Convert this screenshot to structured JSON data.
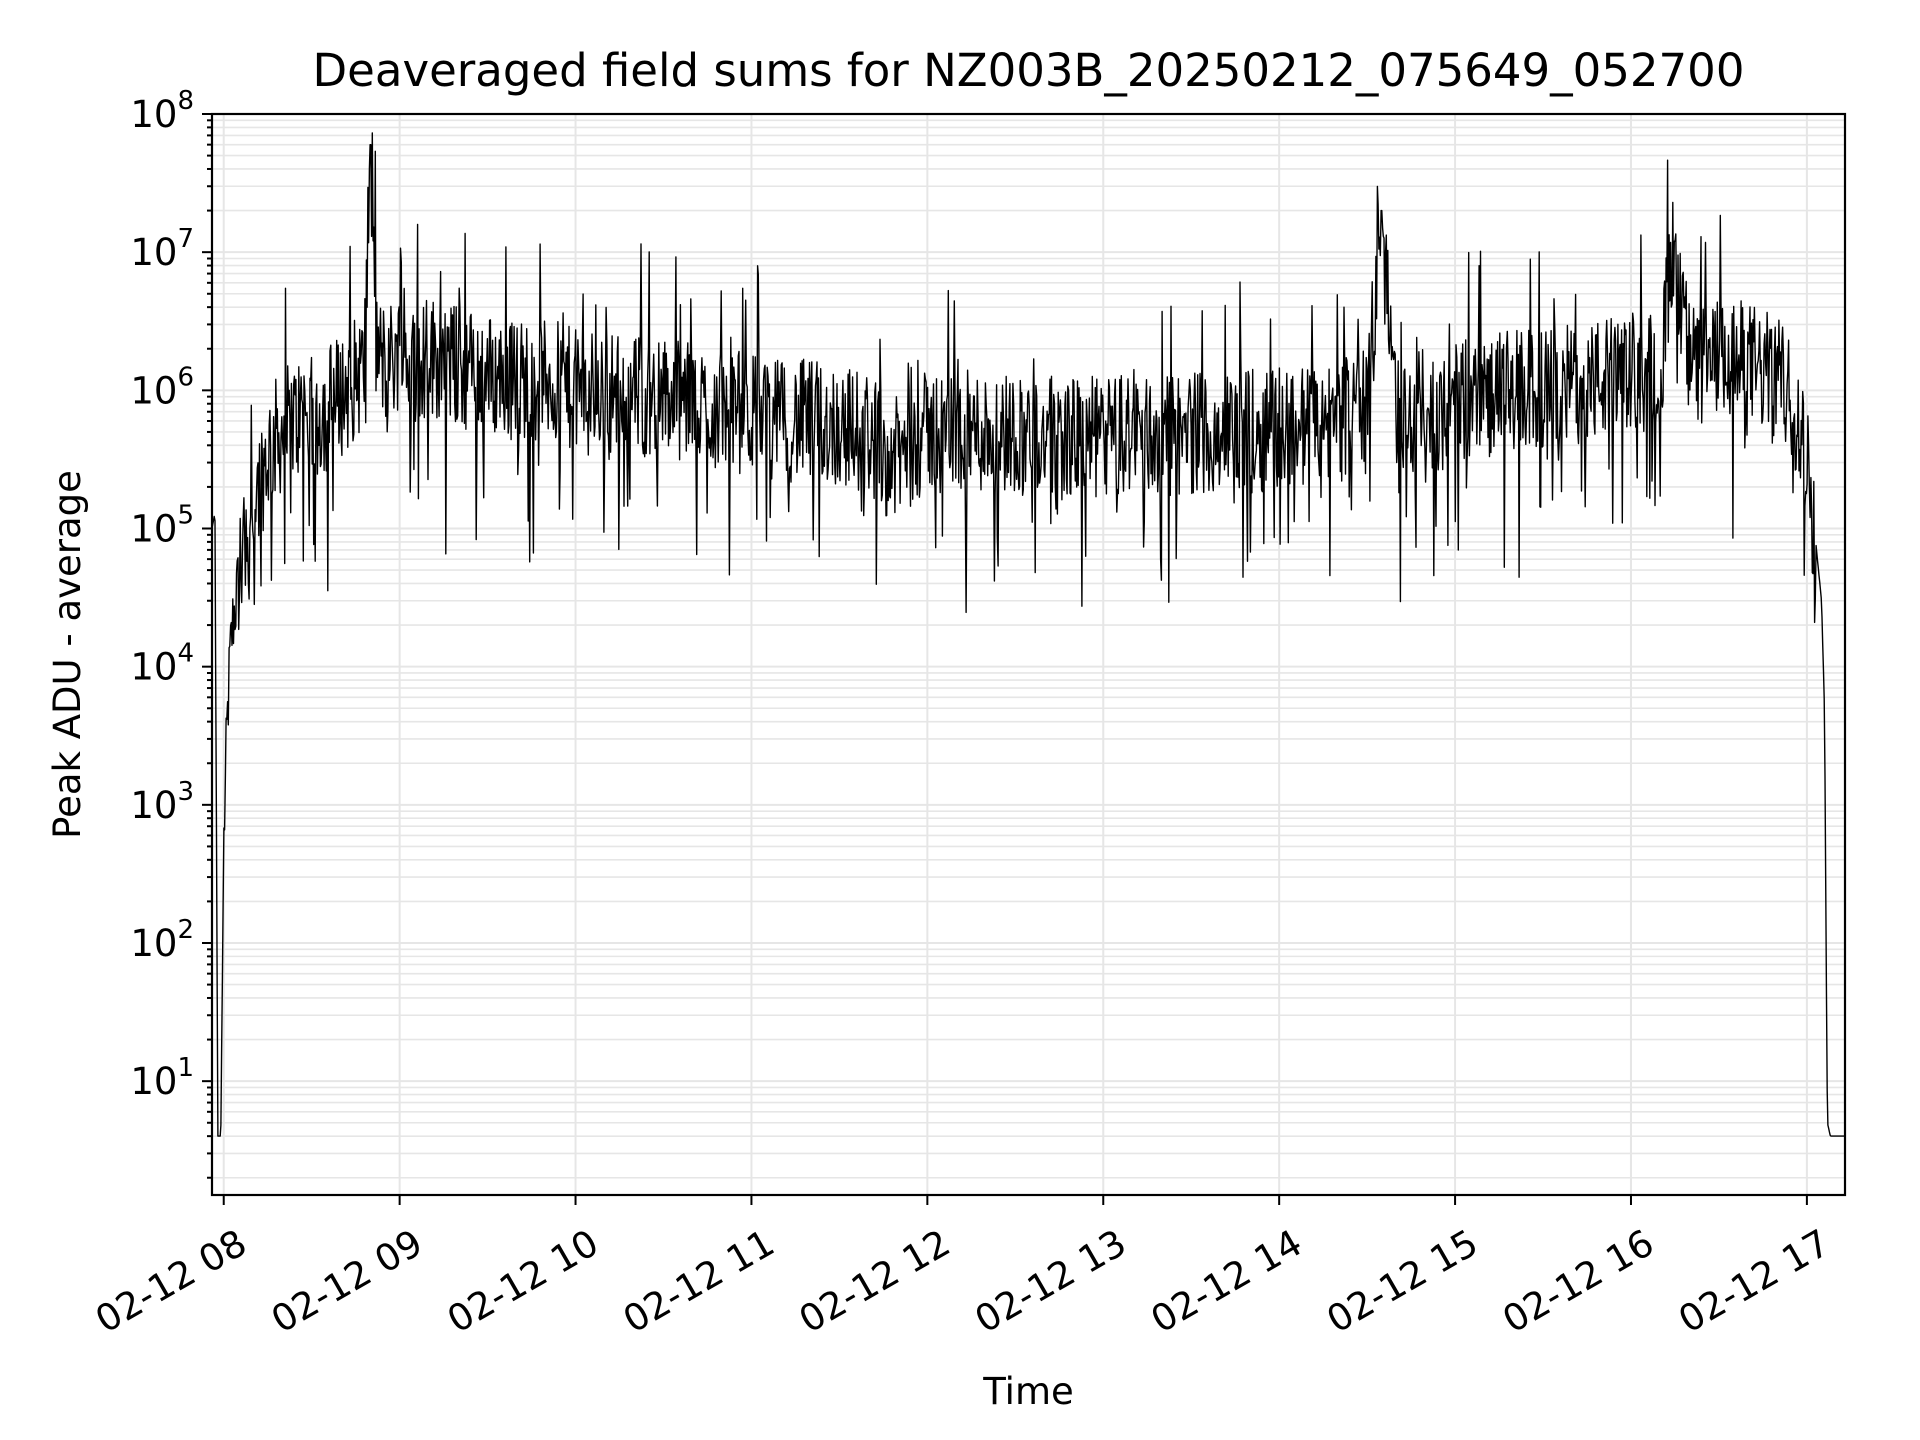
{
  "chart_data": {
    "type": "line",
    "title": "Deaveraged field sums for NZ003B_20250212_075649_052700",
    "xlabel": "Time",
    "ylabel": "Peak ADU - average",
    "yscale": "log",
    "ylim": [
      1.5,
      100000000
    ],
    "xlim": [
      "2025-02-12 07:56",
      "2025-02-12 17:13"
    ],
    "grid": true,
    "colors": {
      "line": "#000000",
      "grid": "#e6e6e6",
      "axes": "#000000"
    },
    "x_ticks": [
      {
        "value": "2025-02-12 08:00",
        "label": "02-12 08"
      },
      {
        "value": "2025-02-12 09:00",
        "label": "02-12 09"
      },
      {
        "value": "2025-02-12 10:00",
        "label": "02-12 10"
      },
      {
        "value": "2025-02-12 11:00",
        "label": "02-12 11"
      },
      {
        "value": "2025-02-12 12:00",
        "label": "02-12 12"
      },
      {
        "value": "2025-02-12 13:00",
        "label": "02-12 13"
      },
      {
        "value": "2025-02-12 14:00",
        "label": "02-12 14"
      },
      {
        "value": "2025-02-12 15:00",
        "label": "02-12 15"
      },
      {
        "value": "2025-02-12 16:00",
        "label": "02-12 16"
      },
      {
        "value": "2025-02-12 17:00",
        "label": "02-12 17"
      }
    ],
    "y_ticks": [
      {
        "value": 10,
        "base": "10",
        "exp": "1"
      },
      {
        "value": 100,
        "base": "10",
        "exp": "2"
      },
      {
        "value": 1000,
        "base": "10",
        "exp": "3"
      },
      {
        "value": 10000,
        "base": "10",
        "exp": "4"
      },
      {
        "value": 100000,
        "base": "10",
        "exp": "5"
      },
      {
        "value": 1000000,
        "base": "10",
        "exp": "6"
      },
      {
        "value": 10000000,
        "base": "10",
        "exp": "7"
      },
      {
        "value": 100000000,
        "base": "10",
        "exp": "8"
      }
    ],
    "series": [
      {
        "x": [
          "2025-02-12 07:56",
          "2025-02-12 07:57",
          "2025-02-12 07:58",
          "2025-02-12 07:59",
          "2025-02-12 08:00",
          "2025-02-12 08:01",
          "2025-02-12 08:02",
          "2025-02-12 08:03",
          "2025-02-12 08:05",
          "2025-02-12 08:07",
          "2025-02-12 08:10",
          "2025-02-12 08:13",
          "2025-02-12 08:16",
          "2025-02-12 08:20",
          "2025-02-12 08:24",
          "2025-02-12 08:28",
          "2025-02-12 08:31",
          "2025-02-12 08:36",
          "2025-02-12 08:42",
          "2025-02-12 08:48",
          "2025-02-12 08:50",
          "2025-02-12 08:52",
          "2025-02-12 08:55",
          "2025-02-12 09:00",
          "2025-02-12 09:05",
          "2025-02-12 09:10",
          "2025-02-12 09:20",
          "2025-02-12 09:30",
          "2025-02-12 09:40",
          "2025-02-12 09:50",
          "2025-02-12 10:00",
          "2025-02-12 10:10",
          "2025-02-12 10:20",
          "2025-02-12 10:30",
          "2025-02-12 10:40",
          "2025-02-12 10:50",
          "2025-02-12 11:00",
          "2025-02-12 11:10",
          "2025-02-12 11:20",
          "2025-02-12 11:30",
          "2025-02-12 11:40",
          "2025-02-12 11:48",
          "2025-02-12 12:00",
          "2025-02-12 12:10",
          "2025-02-12 12:20",
          "2025-02-12 12:30",
          "2025-02-12 12:40",
          "2025-02-12 12:50",
          "2025-02-12 13:00",
          "2025-02-12 13:10",
          "2025-02-12 13:20",
          "2025-02-12 13:30",
          "2025-02-12 13:40",
          "2025-02-12 13:50",
          "2025-02-12 14:00",
          "2025-02-12 14:10",
          "2025-02-12 14:20",
          "2025-02-12 14:30",
          "2025-02-12 14:35",
          "2025-02-12 14:40",
          "2025-02-12 14:50",
          "2025-02-12 15:00",
          "2025-02-12 15:10",
          "2025-02-12 15:20",
          "2025-02-12 15:30",
          "2025-02-12 15:40",
          "2025-02-12 15:50",
          "2025-02-12 16:00",
          "2025-02-12 16:10",
          "2025-02-12 16:15",
          "2025-02-12 16:20",
          "2025-02-12 16:30",
          "2025-02-12 16:40",
          "2025-02-12 16:50",
          "2025-02-12 16:55",
          "2025-02-12 17:00",
          "2025-02-12 17:03",
          "2025-02-12 17:05",
          "2025-02-12 17:06",
          "2025-02-12 17:07",
          "2025-02-12 17:08",
          "2025-02-12 17:13"
        ],
        "y": [
          100000,
          130000,
          4,
          4,
          500,
          3000,
          10000,
          20000,
          40000,
          80000,
          150000,
          250000,
          400000,
          500000,
          600000,
          700000,
          600000,
          800000,
          1000000,
          1500000,
          60000000,
          2000000,
          1500000,
          2000000,
          1500000,
          1800000,
          1500000,
          1300000,
          1200000,
          1200000,
          1000000,
          1000000,
          900000,
          900000,
          800000,
          700000,
          700000,
          600000,
          600000,
          550000,
          500000,
          300000,
          500000,
          500000,
          500000,
          500000,
          450000,
          450000,
          450000,
          500000,
          450000,
          500000,
          500000,
          500000,
          550000,
          550000,
          600000,
          700000,
          20000000,
          700000,
          700000,
          800000,
          900000,
          1000000,
          1000000,
          1100000,
          1200000,
          1300000,
          1500000,
          12000000,
          1500000,
          1600000,
          1600000,
          1200000,
          900000,
          300000,
          80000,
          30000,
          5000,
          5,
          4,
          4
        ],
        "noise": "dense high-frequency fluctuation of roughly one decade around the trend, with occasional downward dips to ~1e5 and spikes"
      }
    ]
  }
}
